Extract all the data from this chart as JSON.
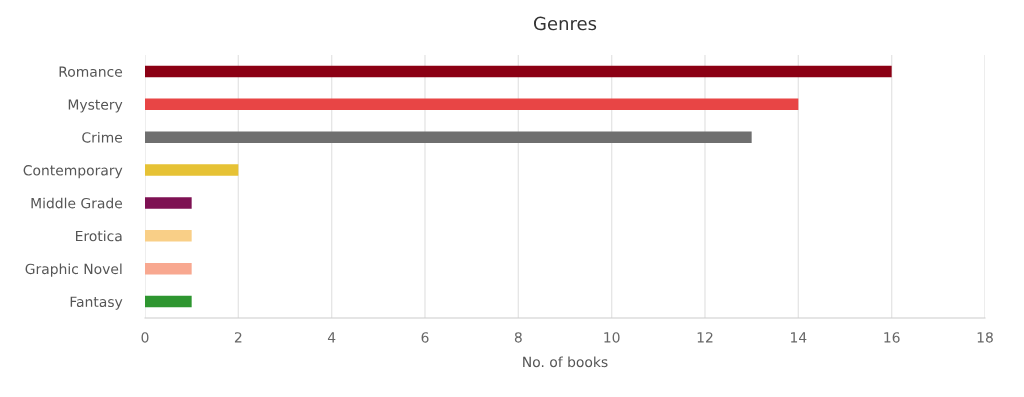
{
  "chart_data": {
    "type": "bar",
    "orientation": "horizontal",
    "title": "Genres",
    "xlabel": "No. of books",
    "categories": [
      "Romance",
      "Mystery",
      "Crime",
      "Contemporary",
      "Middle Grade",
      "Erotica",
      "Graphic Novel",
      "Fantasy"
    ],
    "values": [
      16,
      14,
      13,
      2,
      1,
      1,
      1,
      1
    ],
    "colors": [
      "#8b0014",
      "#e84545",
      "#6f6f6f",
      "#e6c235",
      "#7e1153",
      "#f9cf87",
      "#f8a890",
      "#2e9630"
    ],
    "xlim": [
      0,
      18
    ],
    "xticks": [
      0,
      2,
      4,
      6,
      8,
      10,
      12,
      14,
      16,
      18
    ],
    "grid": "x",
    "legend": false
  }
}
